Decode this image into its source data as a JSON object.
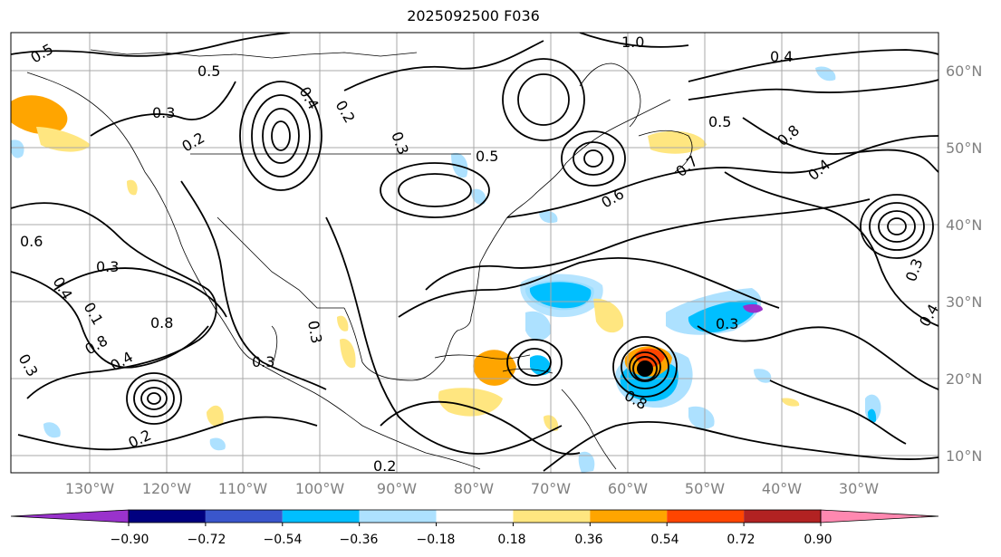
{
  "title": "2025092500 F036",
  "lon_labels": [
    "130°W",
    "120°W",
    "110°W",
    "100°W",
    "90°W",
    "80°W",
    "70°W",
    "60°W",
    "50°W",
    "40°W",
    "30°W"
  ],
  "lat_labels": [
    "60°N",
    "50°N",
    "40°N",
    "30°N",
    "20°N",
    "10°N"
  ],
  "colorbar": {
    "colors": [
      "#9932CC",
      "#000080",
      "#3A56CC",
      "#00BFFF",
      "#ADE1FF",
      "#FFFFFF",
      "#FFE680",
      "#FFA500",
      "#FF4500",
      "#B22222",
      "#FF88B0"
    ],
    "tick_labels": [
      "−0.90",
      "−0.72",
      "−0.54",
      "−0.36",
      "−0.18",
      "0.18",
      "0.36",
      "0.54",
      "0.72",
      "0.90"
    ]
  },
  "contour_labels": [
    "0.5",
    "0.5",
    "0.3",
    "0.2",
    "0.4",
    "0.2",
    "0.3",
    "0.5",
    "1.0",
    "0.4",
    "0.5",
    "0.8",
    "0.6",
    "0.7",
    "0.4",
    "0.3",
    "0.6",
    "0.4",
    "0.3",
    "0.1",
    "0.8",
    "0.8",
    "0.4",
    "0.2",
    "0.3",
    "0.3",
    "0.2",
    "0.4",
    "0.3",
    "0.3",
    "0.8"
  ]
}
